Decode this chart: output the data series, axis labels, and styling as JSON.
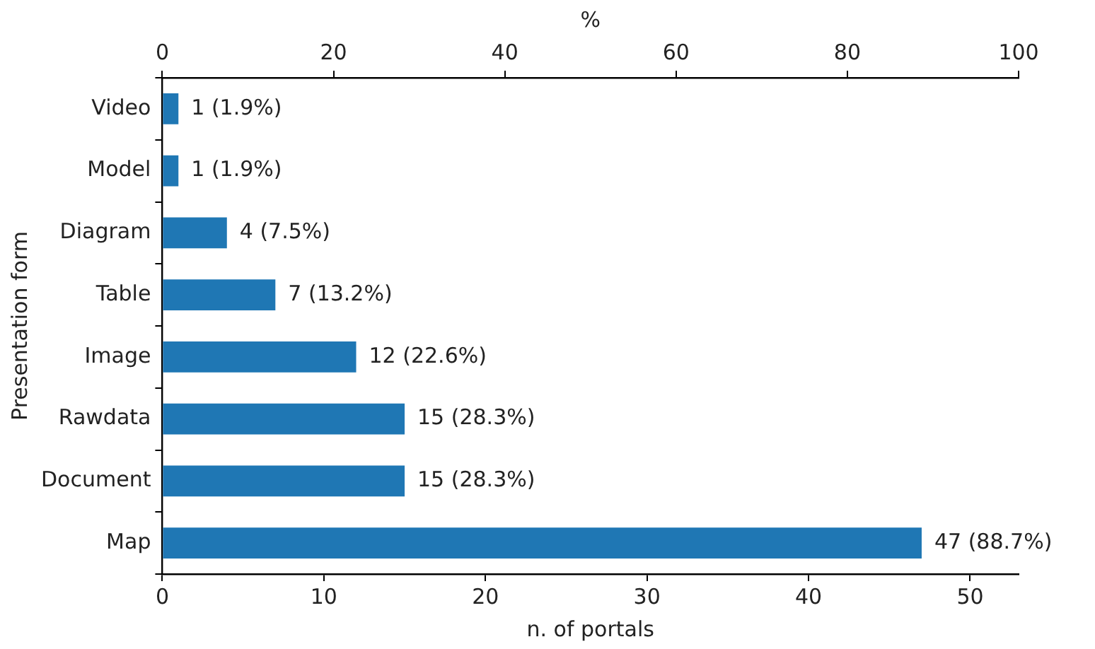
{
  "chart_data": {
    "type": "bar",
    "orientation": "horizontal",
    "categories": [
      "Video",
      "Model",
      "Diagram",
      "Table",
      "Image",
      "Rawdata",
      "Document",
      "Map"
    ],
    "values": [
      1,
      1,
      4,
      7,
      12,
      15,
      15,
      47
    ],
    "value_labels": [
      "1 (1.9%)",
      "1 (1.9%)",
      "4 (7.5%)",
      "7 (13.2%)",
      "12 (22.6%)",
      "15 (28.3%)",
      "15 (28.3%)",
      "47 (88.7%)"
    ],
    "color": "#1f77b4",
    "xlabel": "n. of portals",
    "ylabel": "Presentation form",
    "x2label": "%",
    "xlim": [
      0,
      53
    ],
    "xticks": [
      0,
      10,
      20,
      30,
      40,
      50
    ],
    "x2lim": [
      0,
      100
    ],
    "x2ticks": [
      0,
      20,
      40,
      60,
      80,
      100
    ]
  }
}
